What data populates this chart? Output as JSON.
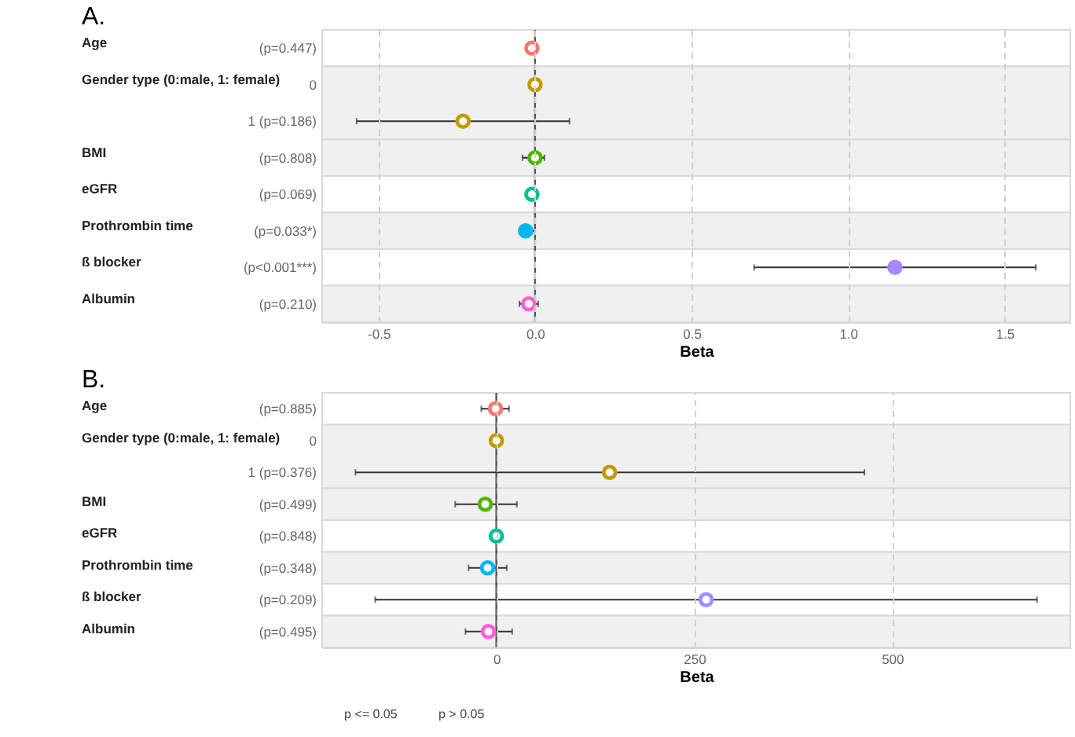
{
  "chart_data": [
    {
      "type": "scatter",
      "title": "A.",
      "xlabel": "Beta",
      "orientation": "horizontal",
      "grid": "x",
      "categories": [
        "(p=0.447)",
        "0",
        "1 (p=0.186)",
        "(p=0.808)",
        "(p=0.069)",
        "(p=0.033*)",
        "(p<0.001***)",
        "(p=0.210)"
      ],
      "xlim": [
        -0.68,
        1.71
      ],
      "xticks": [
        {
          "value": -0.5,
          "label": "-0.5"
        },
        {
          "value": 0,
          "label": "0.0"
        },
        {
          "value": 0.5,
          "label": "0.5"
        },
        {
          "value": 1,
          "label": "1.0"
        },
        {
          "value": 1.5,
          "label": "1.5"
        }
      ],
      "series": [
        {
          "values": [
            null,
            null,
            null,
            null,
            null,
            -0.03,
            1.15,
            null
          ],
          "colors": [
            null,
            null,
            null,
            null,
            null,
            "#00b6eb",
            "#a58aff",
            null
          ],
          "errors": [
            null,
            null,
            null,
            null,
            null,
            [
              -0.05,
              0.0
            ],
            [
              0.7,
              1.6
            ],
            null
          ]
        },
        {
          "color": "#ffffff",
          "values": [
            -0.01,
            0,
            -0.23,
            0,
            -0.01,
            null,
            null,
            -0.02
          ],
          "colors": [
            "#f8766d",
            "#c49a00",
            "#c49a00",
            "#53b400",
            "#00c094",
            null,
            null,
            "#fb61d7"
          ],
          "errors": [
            null,
            null,
            [
              -0.57,
              0.11
            ],
            [
              -0.04,
              0.03
            ],
            null,
            null,
            null,
            [
              -0.05,
              0.01
            ]
          ]
        }
      ],
      "ref_lines": [
        {
          "axis": "x",
          "value": 0,
          "color": "#555555"
        }
      ],
      "bands": [
        {
          "axis": "y",
          "from": "(p=0.447)",
          "to": "(p=0.447)",
          "color": "#ffffff"
        },
        {
          "axis": "y",
          "from": "0",
          "to": "1 (p=0.186)",
          "color": "#f0f0f0"
        },
        {
          "axis": "y",
          "from": "(p=0.808)",
          "to": "(p=0.808)",
          "color": "#f0f0f0"
        },
        {
          "axis": "y",
          "from": "(p=0.069)",
          "to": "(p=0.069)",
          "color": "#ffffff"
        },
        {
          "axis": "y",
          "from": "(p=0.033*)",
          "to": "(p=0.033*)",
          "color": "#f0f0f0"
        },
        {
          "axis": "y",
          "from": "(p<0.001***)",
          "to": "(p<0.001***)",
          "color": "#ffffff"
        },
        {
          "axis": "y",
          "from": "(p=0.210)",
          "to": "(p=0.210)",
          "color": "#f0f0f0"
        }
      ],
      "annotations": [
        "Age",
        "Gender type (0:male, 1: female)",
        "BMI",
        "eGFR",
        "Prothrombin time",
        "ß blocker",
        "Albumin"
      ]
    },
    {
      "type": "scatter",
      "title": "B.",
      "xlabel": "Beta",
      "orientation": "horizontal",
      "grid": "x",
      "legend": "bottom",
      "categories": [
        "(p=0.885)",
        "0",
        "1 (p=0.376)",
        "(p=0.499)",
        "(p=0.848)",
        "(p=0.348)",
        "(p=0.209)",
        "(p=0.495)"
      ],
      "xlim": [
        -220,
        725
      ],
      "xticks": [
        0,
        250,
        500
      ],
      "series": [
        {
          "name": "p <= 0.05",
          "values": [
            null,
            null,
            null,
            null,
            null,
            null,
            null,
            null
          ]
        },
        {
          "name": "p > 0.05",
          "color": "#ffffff",
          "values": [
            -1,
            0,
            143,
            -14,
            0,
            -11,
            265,
            -10
          ],
          "colors": [
            "#f8766d",
            "#c49a00",
            "#c49a00",
            "#53b400",
            "#00c094",
            "#00b6eb",
            "#a58aff",
            "#fb61d7"
          ],
          "errors": [
            [
              -19,
              16
            ],
            null,
            [
              -178,
              465
            ],
            [
              -52,
              26
            ],
            null,
            [
              -35,
              13
            ],
            [
              -153,
              683
            ],
            [
              -39,
              20
            ]
          ]
        }
      ],
      "ref_lines": [
        {
          "axis": "x",
          "value": 0,
          "color": "#555555"
        }
      ],
      "bands": [
        {
          "axis": "y",
          "from": "(p=0.885)",
          "to": "(p=0.885)",
          "color": "#ffffff"
        },
        {
          "axis": "y",
          "from": "0",
          "to": "1 (p=0.376)",
          "color": "#f0f0f0"
        },
        {
          "axis": "y",
          "from": "(p=0.499)",
          "to": "(p=0.499)",
          "color": "#f0f0f0"
        },
        {
          "axis": "y",
          "from": "(p=0.848)",
          "to": "(p=0.848)",
          "color": "#ffffff"
        },
        {
          "axis": "y",
          "from": "(p=0.348)",
          "to": "(p=0.348)",
          "color": "#f0f0f0"
        },
        {
          "axis": "y",
          "from": "(p=0.209)",
          "to": "(p=0.209)",
          "color": "#ffffff"
        },
        {
          "axis": "y",
          "from": "(p=0.495)",
          "to": "(p=0.495)",
          "color": "#f0f0f0"
        }
      ],
      "annotations": [
        "Age",
        "Gender type (0:male, 1: female)",
        "BMI",
        "eGFR",
        "Prothrombin time",
        "ß blocker",
        "Albumin"
      ]
    }
  ]
}
